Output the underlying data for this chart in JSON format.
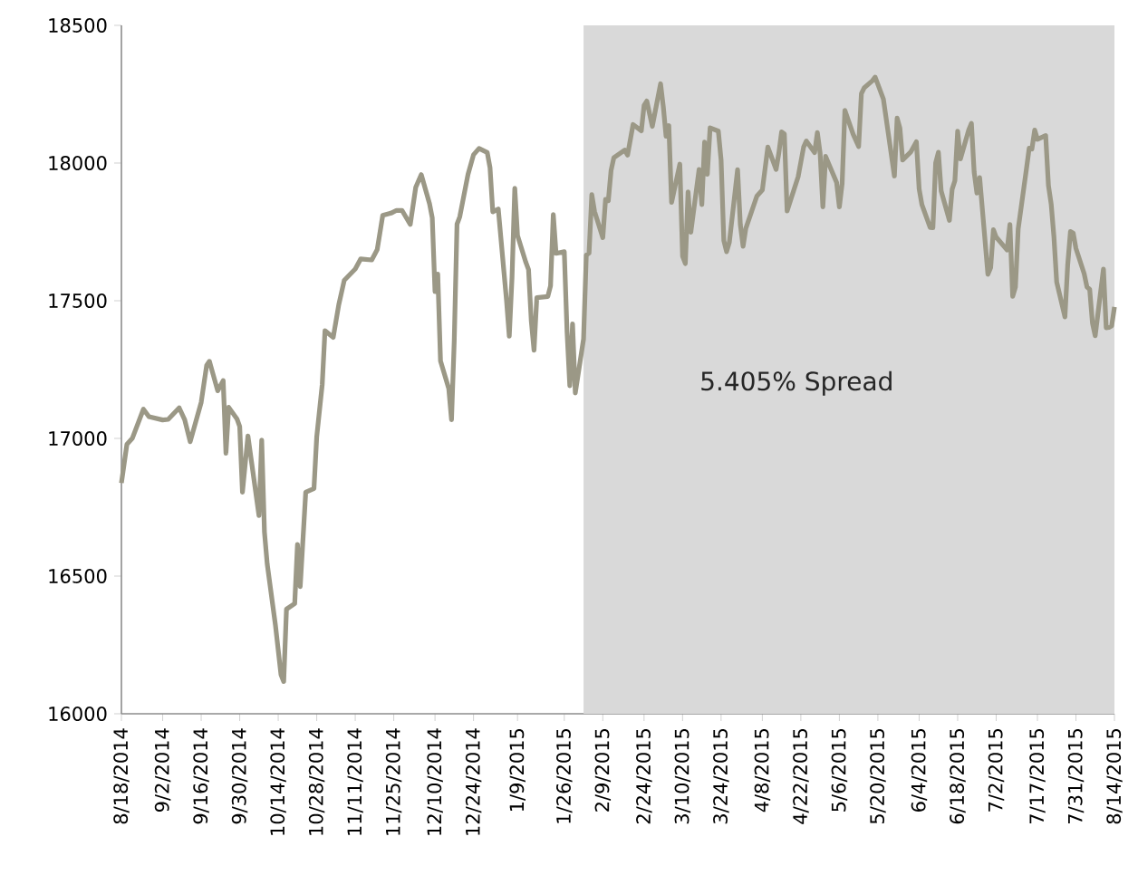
{
  "chart_data": {
    "type": "line",
    "annotations": [
      "5.405% Spread"
    ],
    "xlim": [
      "2014-08-18",
      "2015-08-14"
    ],
    "xticks": [
      {
        "value": "2014-08-18",
        "label": "8/18/2014"
      },
      {
        "value": "2014-09-02",
        "label": "9/2/2014"
      },
      {
        "value": "2014-09-16",
        "label": "9/16/2014"
      },
      {
        "value": "2014-09-30",
        "label": "9/30/2014"
      },
      {
        "value": "2014-10-14",
        "label": "10/14/2014"
      },
      {
        "value": "2014-10-28",
        "label": "10/28/2014"
      },
      {
        "value": "2014-11-11",
        "label": "11/11/2014"
      },
      {
        "value": "2014-11-25",
        "label": "11/25/2014"
      },
      {
        "value": "2014-12-10",
        "label": "12/10/2014"
      },
      {
        "value": "2014-12-24",
        "label": "12/24/2014"
      },
      {
        "value": "2015-01-09",
        "label": "1/9/2015"
      },
      {
        "value": "2015-01-26",
        "label": "1/26/2015"
      },
      {
        "value": "2015-02-09",
        "label": "2/9/2015"
      },
      {
        "value": "2015-02-24",
        "label": "2/24/2015"
      },
      {
        "value": "2015-03-10",
        "label": "3/10/2015"
      },
      {
        "value": "2015-03-24",
        "label": "3/24/2015"
      },
      {
        "value": "2015-04-08",
        "label": "4/8/2015"
      },
      {
        "value": "2015-04-22",
        "label": "4/22/2015"
      },
      {
        "value": "2015-05-06",
        "label": "5/6/2015"
      },
      {
        "value": "2015-05-20",
        "label": "5/20/2015"
      },
      {
        "value": "2015-06-04",
        "label": "6/4/2015"
      },
      {
        "value": "2015-06-18",
        "label": "6/18/2015"
      },
      {
        "value": "2015-07-02",
        "label": "7/2/2015"
      },
      {
        "value": "2015-07-17",
        "label": "7/17/2015"
      },
      {
        "value": "2015-07-31",
        "label": "7/31/2015"
      },
      {
        "value": "2015-08-14",
        "label": "8/14/2015"
      }
    ],
    "ylim": [
      16000,
      18500
    ],
    "yticks": [
      16000,
      16500,
      17000,
      17500,
      18000,
      18500
    ],
    "grid": false,
    "bands": [
      {
        "axis": "x",
        "from": "2015-02-02",
        "to": "2015-08-14",
        "color": "#d9d9d9"
      }
    ],
    "series": [
      {
        "color": "#9b9886",
        "x": [
          "2014-08-18",
          "2014-08-20",
          "2014-08-22",
          "2014-08-26",
          "2014-08-28",
          "2014-09-02",
          "2014-09-04",
          "2014-09-08",
          "2014-09-10",
          "2014-09-12",
          "2014-09-16",
          "2014-09-18",
          "2014-09-19",
          "2014-09-22",
          "2014-09-24",
          "2014-09-25",
          "2014-09-26",
          "2014-09-29",
          "2014-09-30",
          "2014-10-01",
          "2014-10-03",
          "2014-10-07",
          "2014-10-08",
          "2014-10-09",
          "2014-10-10",
          "2014-10-13",
          "2014-10-15",
          "2014-10-16",
          "2014-10-17",
          "2014-10-20",
          "2014-10-21",
          "2014-10-22",
          "2014-10-24",
          "2014-10-27",
          "2014-10-28",
          "2014-10-30",
          "2014-10-31",
          "2014-11-03",
          "2014-11-05",
          "2014-11-07",
          "2014-11-11",
          "2014-11-13",
          "2014-11-17",
          "2014-11-19",
          "2014-11-21",
          "2014-11-24",
          "2014-11-26",
          "2014-11-28",
          "2014-12-01",
          "2014-12-03",
          "2014-12-05",
          "2014-12-08",
          "2014-12-09",
          "2014-12-10",
          "2014-12-11",
          "2014-12-12",
          "2014-12-15",
          "2014-12-16",
          "2014-12-17",
          "2014-12-18",
          "2014-12-19",
          "2014-12-22",
          "2014-12-24",
          "2014-12-26",
          "2014-12-29",
          "2014-12-30",
          "2014-12-31",
          "2015-01-02",
          "2015-01-05",
          "2015-01-06",
          "2015-01-07",
          "2015-01-08",
          "2015-01-09",
          "2015-01-12",
          "2015-01-13",
          "2015-01-14",
          "2015-01-15",
          "2015-01-16",
          "2015-01-20",
          "2015-01-21",
          "2015-01-22",
          "2015-01-23",
          "2015-01-26",
          "2015-01-27",
          "2015-01-28",
          "2015-01-29",
          "2015-01-30",
          "2015-02-02",
          "2015-02-03",
          "2015-02-04",
          "2015-02-05",
          "2015-02-06",
          "2015-02-09",
          "2015-02-10",
          "2015-02-11",
          "2015-02-12",
          "2015-02-13",
          "2015-02-17",
          "2015-02-18",
          "2015-02-20",
          "2015-02-23",
          "2015-02-24",
          "2015-02-25",
          "2015-02-27",
          "2015-03-02",
          "2015-03-03",
          "2015-03-04",
          "2015-03-05",
          "2015-03-06",
          "2015-03-09",
          "2015-03-10",
          "2015-03-11",
          "2015-03-12",
          "2015-03-13",
          "2015-03-16",
          "2015-03-17",
          "2015-03-18",
          "2015-03-19",
          "2015-03-20",
          "2015-03-23",
          "2015-03-24",
          "2015-03-25",
          "2015-03-26",
          "2015-03-27",
          "2015-03-30",
          "2015-03-31",
          "2015-04-01",
          "2015-04-02",
          "2015-04-06",
          "2015-04-08",
          "2015-04-10",
          "2015-04-13",
          "2015-04-14",
          "2015-04-15",
          "2015-04-16",
          "2015-04-17",
          "2015-04-21",
          "2015-04-23",
          "2015-04-24",
          "2015-04-27",
          "2015-04-28",
          "2015-04-29",
          "2015-04-30",
          "2015-05-01",
          "2015-05-05",
          "2015-05-06",
          "2015-05-07",
          "2015-05-08",
          "2015-05-11",
          "2015-05-13",
          "2015-05-14",
          "2015-05-15",
          "2015-05-18",
          "2015-05-19",
          "2015-05-20",
          "2015-05-22",
          "2015-05-26",
          "2015-05-27",
          "2015-05-28",
          "2015-05-29",
          "2015-06-01",
          "2015-06-03",
          "2015-06-04",
          "2015-06-05",
          "2015-06-08",
          "2015-06-09",
          "2015-06-10",
          "2015-06-11",
          "2015-06-12",
          "2015-06-15",
          "2015-06-16",
          "2015-06-17",
          "2015-06-18",
          "2015-06-19",
          "2015-06-22",
          "2015-06-23",
          "2015-06-24",
          "2015-06-25",
          "2015-06-26",
          "2015-06-29",
          "2015-06-30",
          "2015-07-01",
          "2015-07-02",
          "2015-07-06",
          "2015-07-07",
          "2015-07-08",
          "2015-07-09",
          "2015-07-10",
          "2015-07-13",
          "2015-07-14",
          "2015-07-15",
          "2015-07-16",
          "2015-07-17",
          "2015-07-20",
          "2015-07-21",
          "2015-07-22",
          "2015-07-23",
          "2015-07-24",
          "2015-07-27",
          "2015-07-28",
          "2015-07-29",
          "2015-07-30",
          "2015-07-31",
          "2015-08-03",
          "2015-08-04",
          "2015-08-05",
          "2015-08-06",
          "2015-08-07",
          "2015-08-10",
          "2015-08-11",
          "2015-08-12",
          "2015-08-13",
          "2015-08-14"
        ],
        "values": [
          16838,
          16979,
          17001,
          17106,
          17079,
          17067,
          17069,
          17111,
          17068,
          16988,
          17131,
          17266,
          17280,
          17173,
          17210,
          16946,
          17113,
          17071,
          17043,
          16805,
          17009,
          16720,
          16994,
          16660,
          16544,
          16321,
          16142,
          16117,
          16380,
          16400,
          16615,
          16462,
          16805,
          16818,
          17006,
          17196,
          17391,
          17367,
          17485,
          17574,
          17615,
          17652,
          17648,
          17686,
          17810,
          17818,
          17828,
          17828,
          17777,
          17912,
          17958,
          17853,
          17801,
          17533,
          17597,
          17281,
          17181,
          17068,
          17357,
          17778,
          17805,
          17959,
          18030,
          18053,
          18038,
          17983,
          17823,
          17833,
          17501,
          17371,
          17585,
          17908,
          17737,
          17640,
          17613,
          17427,
          17320,
          17511,
          17515,
          17554,
          17813,
          17672,
          17678,
          17387,
          17191,
          17416,
          17165,
          17361,
          17666,
          17673,
          17885,
          17824,
          17729,
          17868,
          17863,
          17973,
          18019,
          18047,
          18029,
          18140,
          18117,
          18209,
          18225,
          18133,
          18288,
          18204,
          18097,
          18136,
          17857,
          17996,
          17662,
          17635,
          17895,
          17749,
          17977,
          17849,
          18076,
          17959,
          18128,
          18116,
          18011,
          17718,
          17678,
          17712,
          17976,
          17776,
          17698,
          17763,
          17880,
          17902,
          18058,
          17977,
          18037,
          18113,
          18106,
          17826,
          17950,
          18058,
          18080,
          18038,
          18111,
          18036,
          17841,
          18024,
          17929,
          17841,
          17925,
          18191,
          18105,
          18060,
          18252,
          18273,
          18299,
          18312,
          18286,
          18232,
          17953,
          18163,
          18127,
          18011,
          18041,
          18077,
          17906,
          17849,
          17766,
          17765,
          18000,
          18039,
          17899,
          17792,
          17905,
          17936,
          18116,
          18015,
          18119,
          18144,
          17967,
          17891,
          17947,
          17596,
          17620,
          17758,
          17731,
          17684,
          17777,
          17516,
          17549,
          17760,
          17978,
          18054,
          18051,
          18120,
          18086,
          18100,
          17919,
          17851,
          17732,
          17568,
          17441,
          17630,
          17751,
          17746,
          17690,
          17598,
          17550,
          17541,
          17419,
          17373,
          17615,
          17402,
          17403,
          17409,
          17477
        ]
      }
    ]
  }
}
